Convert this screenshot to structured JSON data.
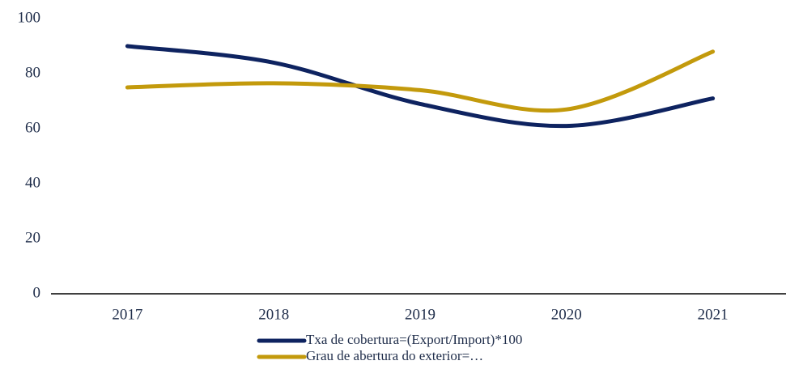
{
  "chart_data": {
    "type": "line",
    "categories": [
      "2017",
      "2018",
      "2019",
      "2020",
      "2021"
    ],
    "series": [
      {
        "name": "Txa de cobertura=(Export/Import)*100",
        "color": "#0e2360",
        "values": [
          90,
          84,
          69,
          61,
          71
        ]
      },
      {
        "name": "Grau de abertura do exterior=…",
        "color": "#c39a0c",
        "values": [
          75,
          76.5,
          74,
          67,
          88
        ]
      }
    ],
    "ylim": [
      0,
      100
    ],
    "yticks": [
      0,
      20,
      40,
      60,
      80,
      100
    ],
    "grid": false
  }
}
